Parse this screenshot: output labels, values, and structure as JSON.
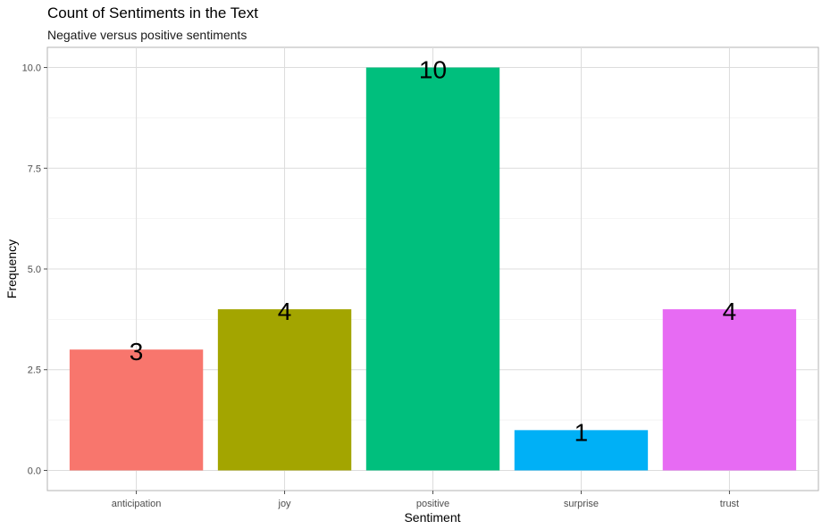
{
  "chart_data": {
    "type": "bar",
    "title": "Count of Sentiments in the Text",
    "subtitle": "Negative versus positive sentiments",
    "xlabel": "Sentiment",
    "ylabel": "Frequency",
    "categories": [
      "anticipation",
      "joy",
      "positive",
      "surprise",
      "trust"
    ],
    "values": [
      3,
      4,
      10,
      1,
      4
    ],
    "data_labels": [
      "3",
      "4",
      "10",
      "1",
      "4"
    ],
    "colors": [
      "#F8766D",
      "#A3A500",
      "#00BF7D",
      "#00B0F6",
      "#E76BF3"
    ],
    "yticks": [
      0,
      2.5,
      5,
      7.5,
      10
    ],
    "ytick_labels": [
      "0.0",
      "2.5",
      "5.0",
      "7.5",
      "10.0"
    ],
    "ylim": [
      -0.5,
      10.5
    ],
    "grid": true,
    "legend": "none"
  }
}
